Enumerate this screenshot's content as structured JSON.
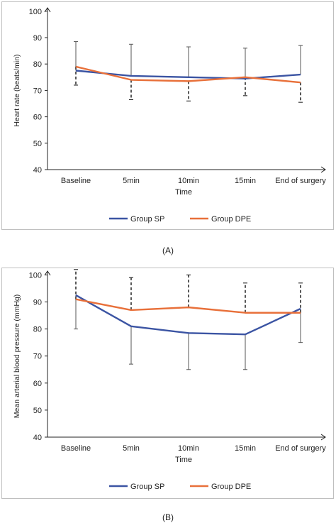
{
  "charts": [
    {
      "type": "line",
      "ylabel": "Heart rate (beats/min)",
      "xlabel": "Time",
      "categories": [
        "Baseline",
        "5min",
        "10min",
        "15min",
        "End of surgery"
      ],
      "ylim": [
        40,
        100
      ],
      "yticks": [
        40,
        50,
        60,
        70,
        80,
        90,
        100
      ],
      "legend_position": "bottom",
      "series": [
        {
          "name": "Group SP",
          "color": "#3b54a3",
          "values": [
            77.5,
            75.5,
            75,
            74.5,
            76
          ],
          "error_up": [
            11,
            12,
            11.5,
            11.5,
            11
          ]
        },
        {
          "name": "Group DPE",
          "color": "#e8703a",
          "values": [
            79,
            74,
            73.5,
            75,
            73
          ],
          "error_down": [
            7,
            7.5,
            7.5,
            7,
            7.5
          ]
        }
      ],
      "caption": "(A)"
    },
    {
      "type": "line",
      "ylabel": "Mean arterial blood pressure (mmHg)",
      "xlabel": "Time",
      "categories": [
        "Baseline",
        "5min",
        "10min",
        "15min",
        "End of surgery"
      ],
      "ylim": [
        40,
        110
      ],
      "yticks": [
        40,
        50,
        60,
        70,
        80,
        90,
        100
      ],
      "legend_position": "bottom",
      "series": [
        {
          "name": "Group SP",
          "color": "#3b54a3",
          "values": [
            92.5,
            81,
            78.5,
            78,
            87.5
          ],
          "error_down": [
            12.5,
            14,
            13.5,
            13,
            12.5
          ]
        },
        {
          "name": "Group DPE",
          "color": "#e8703a",
          "values": [
            91,
            87,
            88,
            86,
            86
          ],
          "error_up": [
            11,
            12,
            12,
            11,
            11
          ]
        }
      ],
      "caption": "(B)"
    }
  ]
}
